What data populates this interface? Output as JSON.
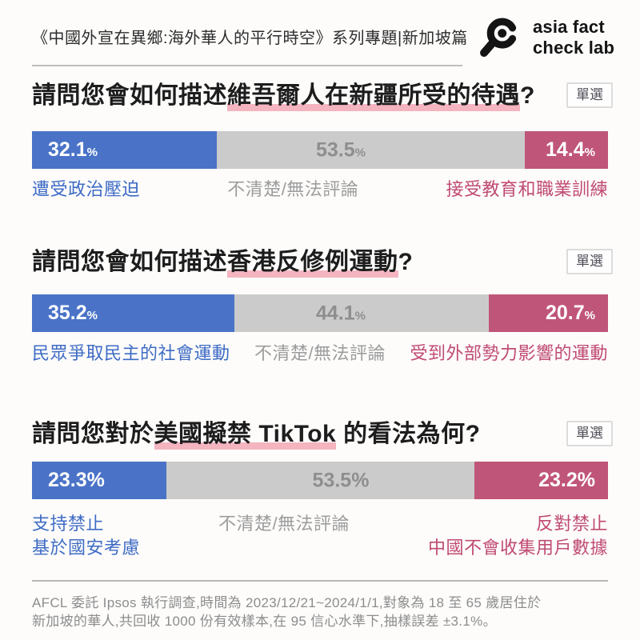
{
  "header": {
    "title": "《中國外宣在異鄉:海外華人的平行時空》系列專題|新加坡篇",
    "logo_line1": "asia fact",
    "logo_line2": "check lab"
  },
  "colors": {
    "bar_blue": "#4a73c8",
    "bar_gray": "#cbcbcb",
    "bar_magenta": "#c0557a",
    "label_blue": "#3e6bc5",
    "label_gray": "#9d9d9d",
    "label_magenta": "#c04a73",
    "highlight_pink": "#f4b5c0"
  },
  "chart_data": [
    {
      "type": "bar",
      "stacked": true,
      "title": "請問您會如何描述維吾爾人在新疆所受的待遇?",
      "categories": [
        "遭受政治壓迫",
        "不清楚/無法評論",
        "接受教育和職業訓練"
      ],
      "values": [
        32.1,
        53.5,
        14.4
      ],
      "unit": "%",
      "xlim": [
        0,
        100
      ]
    },
    {
      "type": "bar",
      "stacked": true,
      "title": "請問您會如何描述香港反修例運動?",
      "categories": [
        "民眾爭取民主的社會運動",
        "不清楚/無法評論",
        "受到外部勢力影響的運動"
      ],
      "values": [
        35.2,
        44.1,
        20.7
      ],
      "unit": "%",
      "xlim": [
        0,
        100
      ]
    },
    {
      "type": "bar",
      "stacked": true,
      "title": "請問您對於美國擬禁 TikTok 的看法為何?",
      "categories": [
        "支持禁止 基於國安考慮",
        "不清楚/無法評論",
        "反對禁止 中國不會收集用戶數據"
      ],
      "values": [
        23.3,
        53.5,
        23.2
      ],
      "unit": "%",
      "xlim": [
        0,
        100
      ]
    }
  ],
  "questions": [
    {
      "title_prefix": "請問您會如何描述",
      "title_highlight": "維吾爾人在新疆所受的待遇",
      "title_suffix": "?",
      "badge": "單選",
      "bars": [
        {
          "value": "32.1",
          "unit": "%",
          "label": "遭受政治壓迫"
        },
        {
          "value": "53.5",
          "unit": "%",
          "label": "不清楚/無法評論"
        },
        {
          "value": "14.4",
          "unit": "%",
          "label": "接受教育和職業訓練"
        }
      ]
    },
    {
      "title_prefix": "請問您會如何描述",
      "title_highlight": "香港反修例運動",
      "title_suffix": "?",
      "badge": "單選",
      "bars": [
        {
          "value": "35.2",
          "unit": "%",
          "label": "民眾爭取民主的社會運動"
        },
        {
          "value": "44.1",
          "unit": "%",
          "label": "不清楚/無法評論"
        },
        {
          "value": "20.7",
          "unit": "%",
          "label": "受到外部勢力影響的運動"
        }
      ]
    },
    {
      "title_prefix": "請問您對於",
      "title_highlight": "美國擬禁 TikTok",
      "title_suffix": " 的看法為何?",
      "badge": "單選",
      "bars": [
        {
          "value": "23.3",
          "unit": "%",
          "label": "支持禁止",
          "label2": "基於國安考慮"
        },
        {
          "value": "53.5",
          "unit": "%",
          "label": "不清楚/無法評論"
        },
        {
          "value": "23.2",
          "unit": "%",
          "label": "反對禁止",
          "label2": "中國不會收集用戶數據"
        }
      ]
    }
  ],
  "footer": {
    "line1": "AFCL 委託 Ipsos 執行調查,時間為 2023/12/21~2024/1/1,對象為 18 至 65 歲居住於",
    "line2": "新加坡的華人,共回收 1000 份有效樣本,在 95 信心水準下,抽樣誤差 ±3.1%。"
  }
}
